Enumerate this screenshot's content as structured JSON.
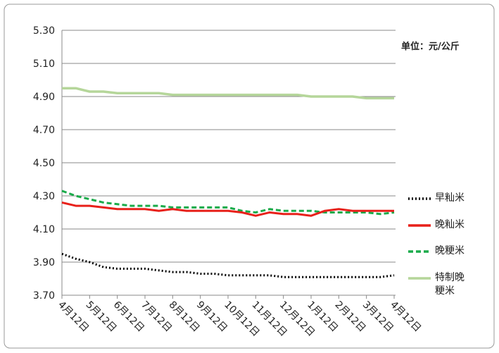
{
  "chart_data": {
    "type": "line",
    "annotation": "单位：元/公斤",
    "categories": [
      "4月12日",
      null,
      "5月12日",
      null,
      "6月12日",
      null,
      "7月12日",
      null,
      "8月12日",
      null,
      "9月12日",
      null,
      "10月12日",
      null,
      "11月12日",
      null,
      "12月12日",
      null,
      "1月12日",
      null,
      "2月12日",
      null,
      "3月12日",
      null,
      "4月12日"
    ],
    "series": [
      {
        "name": "早籼米",
        "color": "#000000",
        "line_style": "dotted",
        "values": [
          3.95,
          3.92,
          3.9,
          3.87,
          3.86,
          3.86,
          3.86,
          3.85,
          3.84,
          3.84,
          3.83,
          3.83,
          3.82,
          3.82,
          3.82,
          3.82,
          3.81,
          3.81,
          3.81,
          3.81,
          3.81,
          3.81,
          3.81,
          3.81,
          3.82
        ]
      },
      {
        "name": "晚籼米",
        "color": "#e8201a",
        "line_style": "solid",
        "values": [
          4.26,
          4.24,
          4.24,
          4.23,
          4.22,
          4.22,
          4.22,
          4.21,
          4.22,
          4.21,
          4.21,
          4.21,
          4.21,
          4.2,
          4.18,
          4.2,
          4.19,
          4.19,
          4.18,
          4.21,
          4.22,
          4.21,
          4.21,
          4.21,
          4.21
        ]
      },
      {
        "name": "晚粳米",
        "color": "#1aab4a",
        "line_style": "dashed",
        "values": [
          4.33,
          4.3,
          4.28,
          4.26,
          4.25,
          4.24,
          4.24,
          4.24,
          4.23,
          4.23,
          4.23,
          4.23,
          4.23,
          4.21,
          4.2,
          4.22,
          4.21,
          4.21,
          4.21,
          4.2,
          4.2,
          4.2,
          4.2,
          4.19,
          4.2
        ]
      },
      {
        "name": "特制晚粳米",
        "color": "#b5d69a",
        "line_style": "solid",
        "values": [
          4.95,
          4.95,
          4.93,
          4.93,
          4.92,
          4.92,
          4.92,
          4.92,
          4.91,
          4.91,
          4.91,
          4.91,
          4.91,
          4.91,
          4.91,
          4.91,
          4.91,
          4.91,
          4.9,
          4.9,
          4.9,
          4.9,
          4.89,
          4.89,
          4.89
        ]
      }
    ],
    "ylim": [
      3.7,
      5.3
    ],
    "yticks": [
      {
        "value": 3.7,
        "label": "3.70"
      },
      {
        "value": 3.9,
        "label": "3.90"
      },
      {
        "value": 4.1,
        "label": "4.10"
      },
      {
        "value": 4.3,
        "label": "4.30"
      },
      {
        "value": 4.5,
        "label": "4.50"
      },
      {
        "value": 4.7,
        "label": "4.70"
      },
      {
        "value": 4.9,
        "label": "4.90"
      },
      {
        "value": 5.1,
        "label": "5.10"
      },
      {
        "value": 5.3,
        "label": "5.30"
      }
    ],
    "grid": true,
    "legend": "right"
  }
}
